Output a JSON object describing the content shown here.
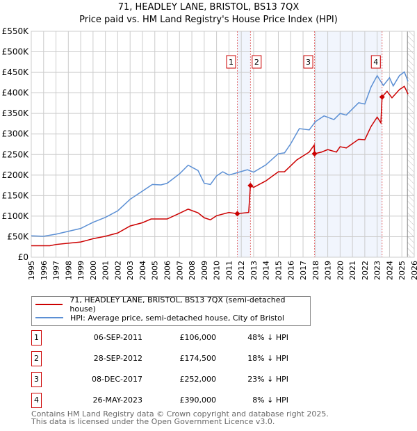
{
  "title": "71, HEADLEY LANE, BRISTOL, BS13 7QX",
  "subtitle": "Price paid vs. HM Land Registry's House Price Index (HPI)",
  "chart_data": {
    "type": "line",
    "title": "71, HEADLEY LANE, BRISTOL, BS13 7QX",
    "subtitle": "Price paid vs. HM Land Registry's House Price Index (HPI)",
    "xlim": [
      1995,
      2026
    ],
    "ylim": [
      0,
      550000
    ],
    "xticks": [
      "1995",
      "1996",
      "1997",
      "1998",
      "1999",
      "2000",
      "2001",
      "2002",
      "2003",
      "2004",
      "2005",
      "2006",
      "2007",
      "2008",
      "2009",
      "2010",
      "2011",
      "2012",
      "2013",
      "2014",
      "2015",
      "2016",
      "2017",
      "2018",
      "2019",
      "2020",
      "2021",
      "2022",
      "2023",
      "2024",
      "2025",
      "2026"
    ],
    "yticks": [
      {
        "v": 0,
        "l": "£0"
      },
      {
        "v": 50000,
        "l": "£50K"
      },
      {
        "v": 100000,
        "l": "£100K"
      },
      {
        "v": 150000,
        "l": "£150K"
      },
      {
        "v": 200000,
        "l": "£200K"
      },
      {
        "v": 250000,
        "l": "£250K"
      },
      {
        "v": 300000,
        "l": "£300K"
      },
      {
        "v": 350000,
        "l": "£350K"
      },
      {
        "v": 400000,
        "l": "£400K"
      },
      {
        "v": 450000,
        "l": "£450K"
      },
      {
        "v": 500000,
        "l": "£500K"
      },
      {
        "v": 550000,
        "l": "£550K"
      }
    ],
    "grid": true,
    "series": [
      {
        "name": "71, HEADLEY LANE, BRISTOL, BS13 7QX (semi-detached house)",
        "color": "#cc0000",
        "x": [
          1995,
          1996.5,
          1997,
          1998,
          1999,
          2000,
          2001,
          2002,
          2003,
          2004,
          2004.7,
          2006,
          2007,
          2007.7,
          2008.5,
          2009,
          2009.5,
          2010,
          2011,
          2011.68,
          2012.6,
          2012.74,
          2013,
          2014,
          2015,
          2015.5,
          2016.5,
          2017.5,
          2017.9,
          2017.93,
          2018.5,
          2019,
          2019.7,
          2020,
          2020.5,
          2021.5,
          2022,
          2022.5,
          2023,
          2023.3,
          2023.4,
          2023.8,
          2024.2,
          2024.8,
          2025.2,
          2025.5
        ],
        "y": [
          28000,
          28000,
          31000,
          34000,
          37000,
          45000,
          51000,
          59000,
          76000,
          84000,
          93000,
          93000,
          107000,
          117000,
          108000,
          96000,
          91000,
          101000,
          109000,
          106000,
          109000,
          174500,
          170000,
          186000,
          208000,
          208000,
          237000,
          256000,
          273000,
          252000,
          256000,
          262000,
          256000,
          269000,
          266000,
          287000,
          286000,
          318000,
          341000,
          327000,
          390000,
          404000,
          388000,
          408000,
          416000,
          397000
        ]
      },
      {
        "name": "HPI: Average price, semi-detached house, City of Bristol",
        "color": "#5b8fd4",
        "x": [
          1995,
          1996,
          1997,
          1998,
          1999,
          2000,
          2001,
          2002,
          2003,
          2004,
          2004.8,
          2005.5,
          2006,
          2007,
          2007.7,
          2008.5,
          2009,
          2009.5,
          2010,
          2010.5,
          2011,
          2011.7,
          2012.5,
          2013,
          2014,
          2015,
          2015.5,
          2016,
          2016.7,
          2017.5,
          2018,
          2018.7,
          2019.5,
          2020,
          2020.5,
          2021,
          2021.5,
          2022,
          2022.5,
          2023,
          2023.5,
          2024,
          2024.3,
          2024.8,
          2025.2,
          2025.5
        ],
        "y": [
          52000,
          51000,
          56000,
          63000,
          70000,
          85000,
          97000,
          113000,
          141000,
          161000,
          177000,
          176000,
          180000,
          203000,
          224000,
          211000,
          180000,
          177000,
          198000,
          208000,
          200000,
          206000,
          213000,
          207000,
          225000,
          252000,
          254000,
          276000,
          313000,
          310000,
          330000,
          344000,
          335000,
          350000,
          346000,
          361000,
          376000,
          373000,
          414000,
          442000,
          418000,
          437000,
          417000,
          442000,
          451000,
          428000
        ]
      }
    ],
    "sales": [
      {
        "n": "1",
        "date": "06-SEP-2011",
        "x": 2011.68,
        "price": "£106,000",
        "price_v": 106000,
        "hpi": "48% ↓ HPI"
      },
      {
        "n": "2",
        "date": "28-SEP-2012",
        "x": 2012.74,
        "price": "£174,500",
        "price_v": 174500,
        "hpi": "18% ↓ HPI"
      },
      {
        "n": "3",
        "date": "08-DEC-2017",
        "x": 2017.93,
        "price": "£252,000",
        "price_v": 252000,
        "hpi": "23% ↓ HPI"
      },
      {
        "n": "4",
        "date": "26-MAY-2023",
        "x": 2023.4,
        "price": "£390,000",
        "price_v": 390000,
        "hpi": "8% ↓ HPI"
      }
    ],
    "shaded": [
      [
        2011.68,
        2012.74
      ],
      [
        2017.93,
        2023.4
      ]
    ],
    "forecast_from": 2025.45,
    "legend": "bottom"
  },
  "legend": {
    "red": "71, HEADLEY LANE, BRISTOL, BS13 7QX (semi-detached house)",
    "blue": "HPI: Average price, semi-detached house, City of Bristol"
  },
  "footer": {
    "line1": "Contains HM Land Registry data © Crown copyright and database right 2025.",
    "line2": "This data is licensed under the Open Government Licence v3.0."
  }
}
